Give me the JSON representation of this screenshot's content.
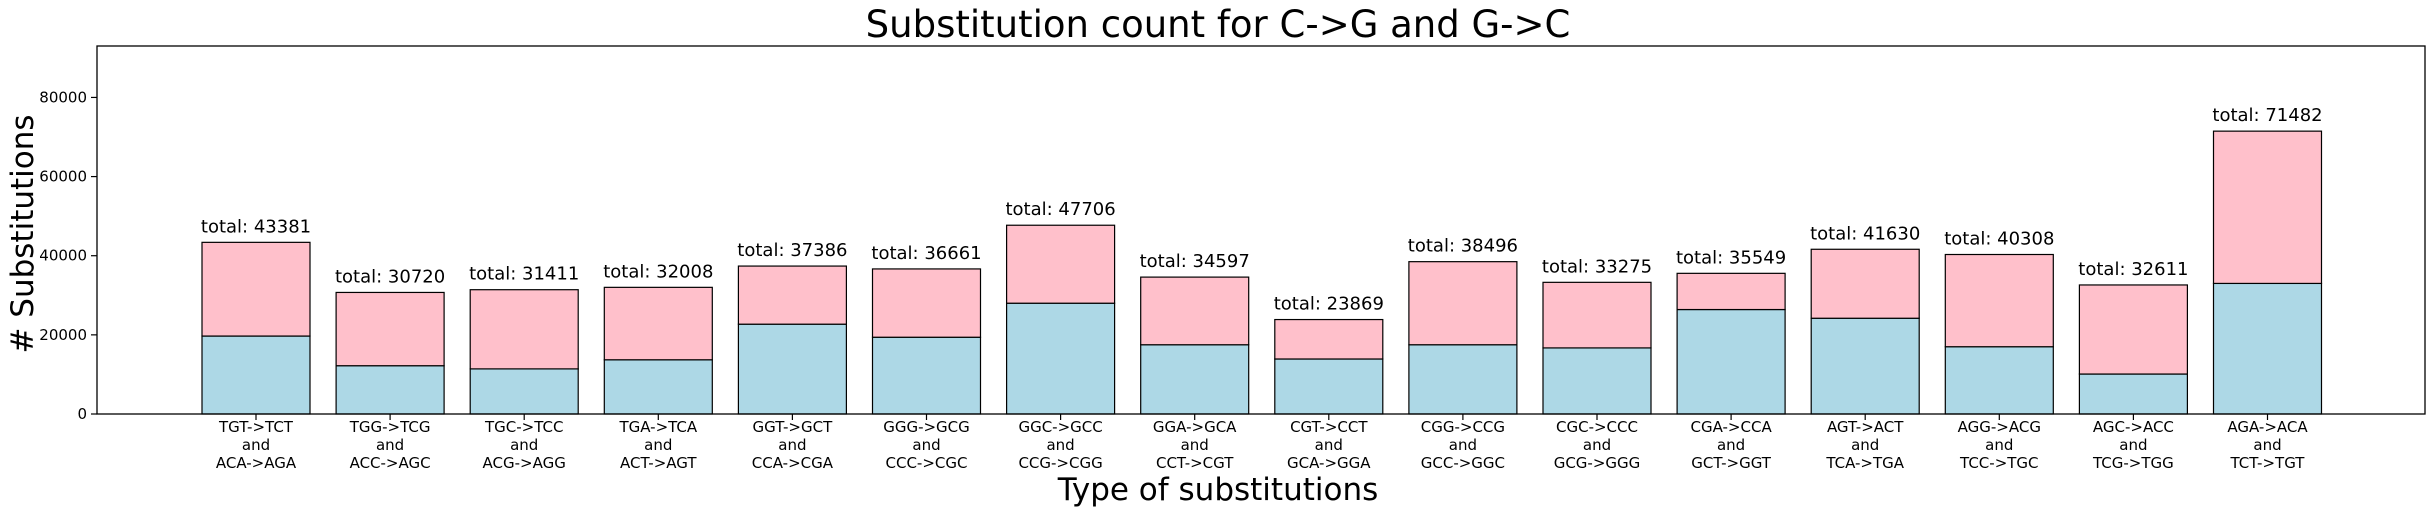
{
  "chart_data": {
    "type": "bar",
    "stacked": true,
    "title": "Substitution count for C->G and G->C",
    "xlabel": "Type of substitutions",
    "ylabel": "# Substitutions",
    "ylim": [
      0,
      93000
    ],
    "yticks": [
      0,
      20000,
      40000,
      60000,
      80000
    ],
    "ytick_labels": [
      "0",
      "20000",
      "40000",
      "60000",
      "80000"
    ],
    "grid": false,
    "colors": {
      "lower": "#add8e6",
      "upper": "#ffc0cb",
      "edge": "#000000"
    },
    "total_prefix": "total: ",
    "categories": [
      [
        "TGT->TCT",
        "and",
        "ACA->AGA"
      ],
      [
        "TGG->TCG",
        "and",
        "ACC->AGC"
      ],
      [
        "TGC->TCC",
        "and",
        "ACG->AGG"
      ],
      [
        "TGA->TCA",
        "and",
        "ACT->AGT"
      ],
      [
        "GGT->GCT",
        "and",
        "CCA->CGA"
      ],
      [
        "GGG->GCG",
        "and",
        "CCC->CGC"
      ],
      [
        "GGC->GCC",
        "and",
        "CCG->CGG"
      ],
      [
        "GGA->GCA",
        "and",
        "CCT->CGT"
      ],
      [
        "CGT->CCT",
        "and",
        "GCA->GGA"
      ],
      [
        "CGG->CCG",
        "and",
        "GCC->GGC"
      ],
      [
        "CGC->CCC",
        "and",
        "GCG->GGG"
      ],
      [
        "CGA->CCA",
        "and",
        "GCT->GGT"
      ],
      [
        "AGT->ACT",
        "and",
        "TCA->TGA"
      ],
      [
        "AGG->ACG",
        "and",
        "TCC->TGC"
      ],
      [
        "AGC->ACC",
        "and",
        "TCG->TGG"
      ],
      [
        "AGA->ACA",
        "and",
        "TCT->TGT"
      ]
    ],
    "lower_values": [
      19700,
      12200,
      11400,
      13700,
      22700,
      19400,
      28000,
      17500,
      13900,
      17500,
      16700,
      26400,
      24200,
      17000,
      10100,
      33000
    ],
    "totals": [
      43381,
      30720,
      31411,
      32008,
      37386,
      36661,
      47706,
      34597,
      23869,
      38496,
      33275,
      35549,
      41630,
      40308,
      32611,
      71482
    ]
  }
}
